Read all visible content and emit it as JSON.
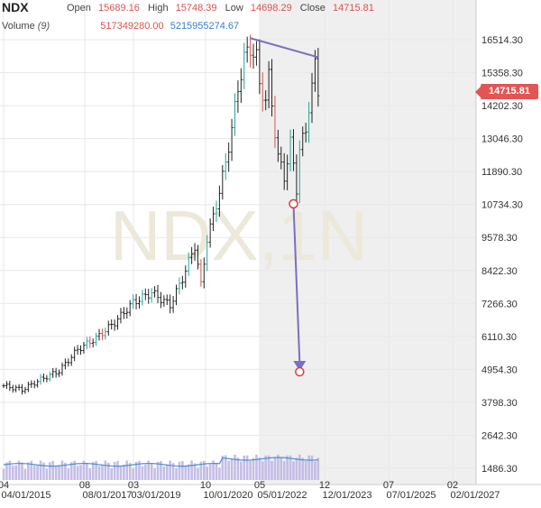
{
  "header": {
    "symbol": "NDX",
    "open_label": "Open",
    "open": "15689.16",
    "high_label": "High",
    "high": "15748.39",
    "low_label": "Low",
    "low": "14698.29",
    "close_label": "Close",
    "close": "14715.81",
    "volume_label": "Volume",
    "volume_period": "(9)",
    "volume_value": "517349280.00",
    "volume_ma": "5215955274.67"
  },
  "watermark": "NDX,1N",
  "last_price_tag": "14715.81",
  "colors": {
    "up": "#26a69a",
    "down": "#d9534f",
    "bar": "#222222",
    "volume": "#c5bde6",
    "volume_ma": "#4a8fd6",
    "trendline": "#7a6fc0",
    "target": "#e03a3a",
    "future_zone": "#efefef",
    "grid": "#e8e8e8"
  },
  "chart_data": {
    "type": "ohlc",
    "y_ticks": [
      "16514.30",
      "15358.30",
      "14202.30",
      "13046.30",
      "11890.30",
      "10734.30",
      "9578.30",
      "8422.30",
      "7266.30",
      "6110.30",
      "4954.30",
      "3798.30",
      "2642.30",
      "1486.30"
    ],
    "x_ticks": [
      "04",
      "04/01/2015",
      "08",
      "08/01/2017",
      "03",
      "03/01/2019",
      "10",
      "10/01/2020",
      "05",
      "05/01/2022",
      "12",
      "12/01/2023",
      "07",
      "07/01/2025",
      "02",
      "02/01/2027"
    ],
    "ylim": [
      1100,
      17000
    ],
    "xlim": [
      0,
      146
    ],
    "future_start": 83,
    "close_path": [
      [
        0,
        4380
      ],
      [
        6,
        4240
      ],
      [
        12,
        4600
      ],
      [
        18,
        4900
      ],
      [
        24,
        5650
      ],
      [
        30,
        6050
      ],
      [
        36,
        6600
      ],
      [
        42,
        7300
      ],
      [
        48,
        7650
      ],
      [
        54,
        7200
      ],
      [
        58,
        8150
      ],
      [
        62,
        9300
      ],
      [
        64,
        7900
      ],
      [
        66,
        9550
      ],
      [
        68,
        10300
      ],
      [
        70,
        11200
      ],
      [
        72,
        12200
      ],
      [
        74,
        13400
      ],
      [
        76,
        14800
      ],
      [
        78,
        15900
      ],
      [
        80,
        16200
      ],
      [
        82,
        15900
      ],
      [
        83,
        14900
      ],
      [
        85,
        14400
      ],
      [
        86,
        15200
      ],
      [
        88,
        13300
      ],
      [
        89,
        12400
      ],
      [
        91,
        11700
      ],
      [
        93,
        12900
      ],
      [
        95,
        11300
      ],
      [
        96,
        12700
      ],
      [
        98,
        13300
      ],
      [
        99,
        14200
      ],
      [
        101,
        15600
      ],
      [
        102,
        14700
      ]
    ],
    "trendline": [
      [
        80,
        16570
      ],
      [
        102,
        15900
      ]
    ],
    "arrow": {
      "from": [
        94,
        10760
      ],
      "to": [
        96,
        4870
      ]
    },
    "target_circles": [
      [
        94,
        10760
      ],
      [
        96,
        4870
      ]
    ],
    "last_close": 14715.81,
    "volume_range": [
      0,
      15000000000.0
    ],
    "volume_ma_level": 5215955274.67
  }
}
